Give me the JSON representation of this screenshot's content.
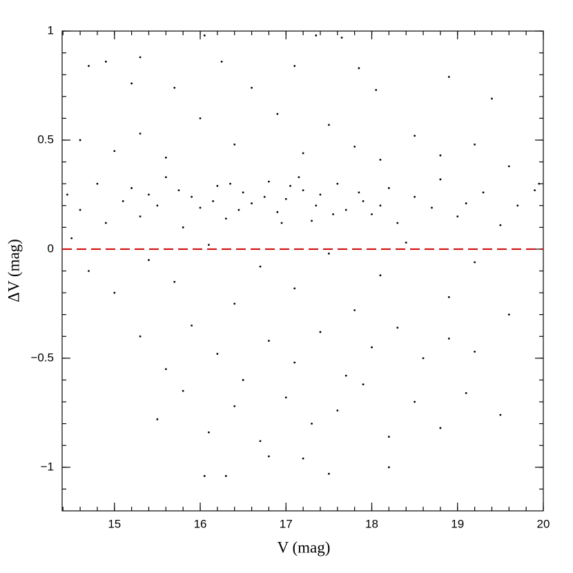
{
  "chart_data": {
    "type": "scatter",
    "x_label": "V (mag)",
    "y_label": "ΔV (mag)",
    "xlim": [
      14.39,
      20
    ],
    "ylim": [
      -1.2,
      1
    ],
    "xticks": [
      15,
      16,
      17,
      18,
      19,
      20
    ],
    "yticks": [
      {
        "value": -1,
        "label": "−1"
      },
      {
        "value": -0.5,
        "label": "−0.5"
      },
      0,
      0.5,
      1
    ],
    "minor_ticks": true,
    "reference_line": {
      "value": 0,
      "color": "#cc0000",
      "style": "dashed"
    },
    "series": [
      {
        "color": "#000000",
        "x": [
          14.45,
          14.6,
          14.8,
          14.9,
          15.1,
          15.2,
          15.3,
          15.5,
          15.6,
          15.8,
          15.9,
          16.0,
          16.2,
          16.3,
          16.5,
          16.6,
          16.8,
          16.9,
          17.0,
          17.2,
          17.3,
          17.4,
          17.6,
          17.7,
          17.9,
          18.0,
          18.2,
          18.3,
          18.5,
          18.7,
          18.8,
          19.0,
          19.1,
          19.3,
          19.5,
          19.7,
          19.9,
          14.5,
          14.7,
          15.0,
          15.4,
          15.7,
          16.1,
          16.4,
          16.7,
          17.1,
          17.5,
          17.8,
          18.1,
          18.4,
          18.9,
          19.2,
          19.6,
          15.3,
          15.6,
          15.9,
          16.2,
          16.5,
          16.8,
          17.1,
          17.4,
          17.7,
          18.0,
          18.3,
          18.6,
          18.9,
          19.2,
          15.5,
          15.8,
          16.1,
          16.4,
          16.7,
          17.0,
          17.3,
          17.6,
          17.9,
          18.2,
          18.5,
          18.8,
          19.1,
          19.5,
          16.05,
          16.3,
          17.5,
          17.2,
          16.8,
          18.2,
          14.7,
          14.9,
          15.3,
          15.2,
          16.05,
          16.25,
          17.35,
          17.65,
          17.1,
          17.85,
          18.05,
          18.9,
          19.4,
          15.7,
          16.6,
          14.6,
          15.0,
          15.3,
          15.6,
          16.0,
          16.4,
          16.9,
          17.2,
          17.5,
          17.8,
          18.1,
          18.5,
          18.8,
          19.2,
          19.6,
          15.4,
          16.15,
          16.45,
          16.75,
          17.05,
          17.35,
          17.55,
          17.85,
          16.95,
          17.15,
          16.35,
          18.1,
          15.75,
          19.95
        ],
        "values": [
          0.25,
          0.18,
          0.3,
          0.12,
          0.22,
          0.28,
          0.15,
          0.2,
          0.33,
          0.1,
          0.24,
          0.19,
          0.29,
          0.14,
          0.26,
          0.21,
          0.31,
          0.17,
          0.23,
          0.27,
          0.13,
          0.25,
          0.3,
          0.18,
          0.22,
          0.16,
          0.28,
          0.12,
          0.24,
          0.19,
          0.32,
          0.15,
          0.21,
          0.26,
          0.11,
          0.2,
          0.27,
          0.05,
          -0.1,
          -0.2,
          -0.05,
          -0.15,
          0.02,
          -0.25,
          -0.08,
          -0.18,
          -0.02,
          -0.28,
          -0.12,
          0.03,
          -0.22,
          -0.06,
          -0.3,
          -0.4,
          -0.55,
          -0.35,
          -0.48,
          -0.6,
          -0.42,
          -0.52,
          -0.38,
          -0.58,
          -0.45,
          -0.36,
          -0.5,
          -0.41,
          -0.47,
          -0.78,
          -0.65,
          -0.84,
          -0.72,
          -0.88,
          -0.68,
          -0.8,
          -0.74,
          -0.62,
          -0.86,
          -0.7,
          -0.82,
          -0.66,
          -0.76,
          -1.04,
          -1.04,
          -1.03,
          -0.96,
          -0.95,
          -1.0,
          0.84,
          0.86,
          0.88,
          0.76,
          0.98,
          0.86,
          0.98,
          0.97,
          0.84,
          0.83,
          0.73,
          0.79,
          0.69,
          0.74,
          0.74,
          0.5,
          0.45,
          0.53,
          0.42,
          0.6,
          0.48,
          0.62,
          0.44,
          0.57,
          0.47,
          0.41,
          0.52,
          0.43,
          0.48,
          0.38,
          0.25,
          0.22,
          0.18,
          0.24,
          0.29,
          0.2,
          0.16,
          0.26,
          0.12,
          0.33,
          0.3,
          0.2,
          0.27,
          0.3
        ]
      }
    ]
  }
}
